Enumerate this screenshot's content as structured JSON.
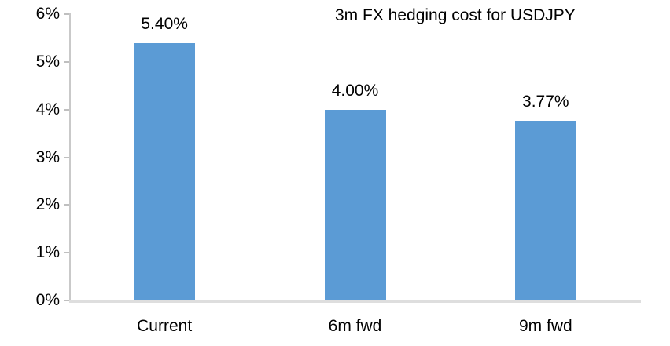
{
  "chart_data": {
    "type": "bar",
    "title": "3m FX hedging cost for USDJPY",
    "categories": [
      "Current",
      "6m fwd",
      "9m fwd"
    ],
    "values": [
      5.4,
      4.0,
      3.77
    ],
    "data_labels": [
      "5.40%",
      "4.00%",
      "3.77%"
    ],
    "ytick_values": [
      0,
      1,
      2,
      3,
      4,
      5,
      6
    ],
    "ytick_labels": [
      "0%",
      "1%",
      "2%",
      "3%",
      "4%",
      "5%",
      "6%"
    ],
    "ylim": [
      0,
      6
    ],
    "xlabel": "",
    "ylabel": "",
    "grid": false,
    "legend_position": "none",
    "bar_color": "#5B9BD5",
    "axis_line_color": "#C9C9C9",
    "baseline_color": "#DEDEDE",
    "tick_color": "#BFBFBF",
    "text_color": "#000000"
  }
}
